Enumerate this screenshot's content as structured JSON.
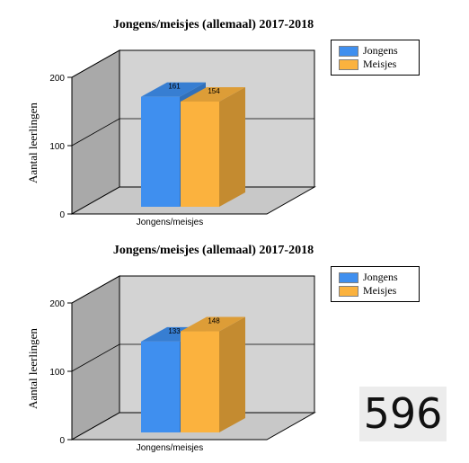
{
  "colors": {
    "series_1": "#3f8fef",
    "series_2": "#fbb23e",
    "wall": "#d3d3d3",
    "wall_side": "#a9a9a9",
    "floor": "#c8c8c8"
  },
  "chart_data": [
    {
      "type": "bar",
      "title": "Jongens/meisjes (allemaal) 2017-2018",
      "xlabel": "",
      "ylabel": "Aantal leerlingen",
      "categories": [
        "Jongens/meisjes"
      ],
      "yticks": [
        "0",
        "100",
        "200"
      ],
      "ylim": [
        0,
        200
      ],
      "grid": true,
      "legend_position": "top-right",
      "series": [
        {
          "name": "Jongens",
          "values": [
            161
          ],
          "labels": [
            "161"
          ]
        },
        {
          "name": "Meisjes",
          "values": [
            154
          ],
          "labels": [
            "154"
          ]
        }
      ]
    },
    {
      "type": "bar",
      "title": "Jongens/meisjes (allemaal) 2017-2018",
      "xlabel": "",
      "ylabel": "Aantal leerlingen",
      "categories": [
        "Jongens/meisjes"
      ],
      "yticks": [
        "0",
        "100",
        "200"
      ],
      "ylim": [
        0,
        200
      ],
      "grid": true,
      "legend_position": "top-right",
      "series": [
        {
          "name": "Jongens",
          "values": [
            133
          ],
          "labels": [
            "133"
          ]
        },
        {
          "name": "Meisjes",
          "values": [
            148
          ],
          "labels": [
            "148"
          ]
        }
      ]
    }
  ],
  "counter": {
    "value": "596"
  }
}
